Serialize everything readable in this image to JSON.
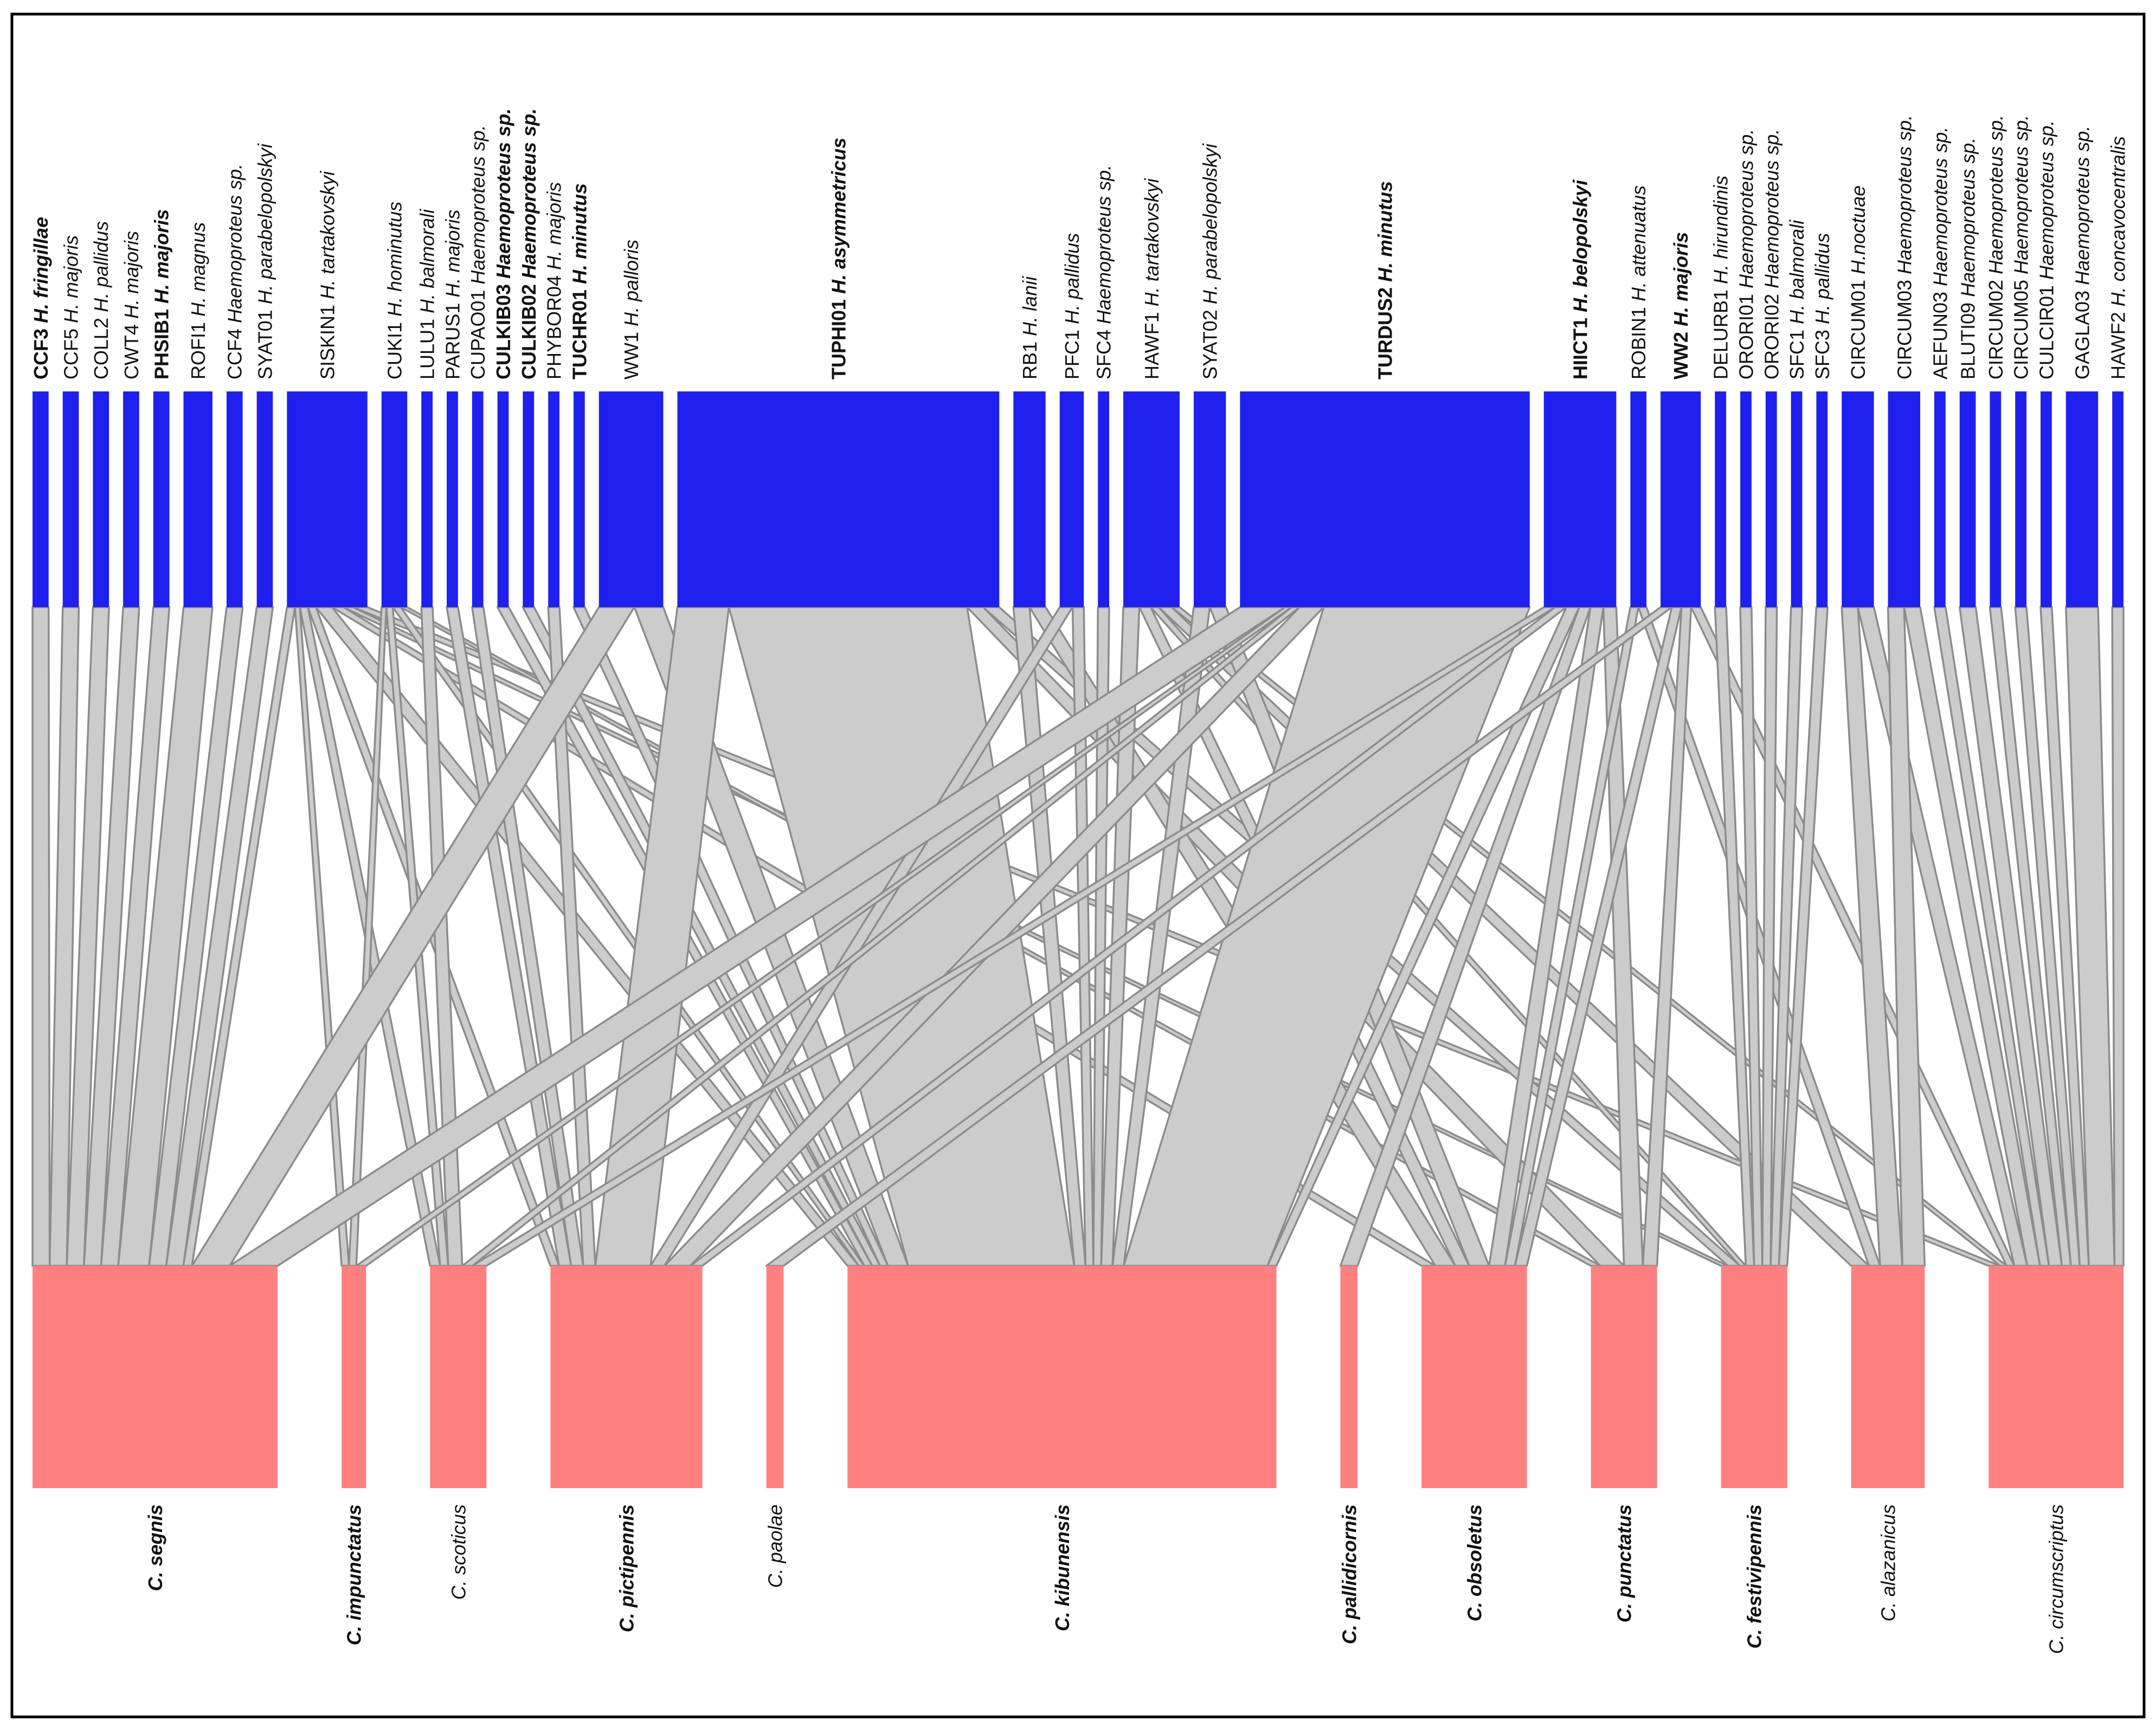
{
  "colors": {
    "parasite_bar": "#2020ee",
    "vector_bar": "#ff8080",
    "link_fill": "#cccccc",
    "link_stroke": "#8c8c8c",
    "frame": "#000000"
  },
  "parasites": [
    {
      "code": "CCF3",
      "species": "H. fringillae",
      "bold": true,
      "w": 1
    },
    {
      "code": "CCF5",
      "species": "H. majoris",
      "bold": false,
      "w": 1
    },
    {
      "code": "COLL2",
      "species": "H. pallidus",
      "bold": false,
      "w": 1
    },
    {
      "code": "CWT4",
      "species": "H. majoris",
      "bold": false,
      "w": 1
    },
    {
      "code": "PHSIB1",
      "species": "H. majoris",
      "bold": true,
      "w": 1
    },
    {
      "code": "ROFI1",
      "species": "H. magnus",
      "bold": false,
      "w": 1.8
    },
    {
      "code": "CCF4",
      "species": "Haemoproteus sp.",
      "bold": false,
      "w": 1
    },
    {
      "code": "SYAT01",
      "species": "H. parabelopolskyi",
      "bold": false,
      "w": 1
    },
    {
      "code": "SISKIN1",
      "species": "H. tartakovskyi",
      "bold": false,
      "w": 5
    },
    {
      "code": "CUKI1",
      "species": "H. hominutus",
      "bold": false,
      "w": 1.6
    },
    {
      "code": "LULU1",
      "species": "H. balmorali",
      "bold": false,
      "w": 0.7
    },
    {
      "code": "PARUS1",
      "species": "H. majoris",
      "bold": false,
      "w": 0.7
    },
    {
      "code": "CUPAO01",
      "species": "Haemoproteus sp.",
      "bold": false,
      "w": 0.7
    },
    {
      "code": "CULKIB03",
      "species": "Haemoproteus sp.",
      "bold": true,
      "w": 0.7
    },
    {
      "code": "CULKIB02",
      "species": "Haemoproteus sp.",
      "bold": true,
      "w": 0.7
    },
    {
      "code": "PHYBOR04",
      "species": "H. majoris",
      "bold": false,
      "w": 0.7
    },
    {
      "code": "TUCHR01",
      "species": "H. minutus",
      "bold": true,
      "w": 0.7
    },
    {
      "code": "WW1",
      "species": "H. palloris",
      "bold": false,
      "w": 4
    },
    {
      "code": "TUPHI01",
      "species": "H. asymmetricus",
      "bold": true,
      "w": 20
    },
    {
      "code": "RB1",
      "species": "H. lanii",
      "bold": false,
      "w": 2
    },
    {
      "code": "PFC1",
      "species": "H. pallidus",
      "bold": false,
      "w": 1.5
    },
    {
      "code": "SFC4",
      "species": "Haemoproteus sp.",
      "bold": false,
      "w": 0.7
    },
    {
      "code": "HAWF1",
      "species": "H. tartakovskyi",
      "bold": false,
      "w": 3.5
    },
    {
      "code": "SYAT02",
      "species": "H.  parabelopolskyi",
      "bold": false,
      "w": 2
    },
    {
      "code": "TURDUS2",
      "species": "H. minutus",
      "bold": true,
      "w": 18
    },
    {
      "code": "HIICT1",
      "species": "H. belopolskyi",
      "bold": true,
      "w": 4.5
    },
    {
      "code": "ROBIN1",
      "species": "H. attenuatus",
      "bold": false,
      "w": 1
    },
    {
      "code": "WW2",
      "species": "H. majoris",
      "bold": true,
      "w": 2.5
    },
    {
      "code": "DELURB1",
      "species": "H. hirundinis",
      "bold": false,
      "w": 0.7
    },
    {
      "code": "ORORI01",
      "species": "Haemoproteus sp.",
      "bold": false,
      "w": 0.7
    },
    {
      "code": "ORORI02",
      "species": "Haemoproteus sp.",
      "bold": false,
      "w": 0.7
    },
    {
      "code": "SFC1",
      "species": "H. balmorali",
      "bold": false,
      "w": 0.7
    },
    {
      "code": "SFC3",
      "species": "H. pallidus",
      "bold": false,
      "w": 0.7
    },
    {
      "code": "CIRCUM01",
      "species": "H.noctuae",
      "bold": false,
      "w": 2
    },
    {
      "code": "CIRCUM03",
      "species": "Haemoproteus sp.",
      "bold": false,
      "w": 2
    },
    {
      "code": "AEFUN03",
      "species": "Haemoproteus sp.",
      "bold": false,
      "w": 0.7
    },
    {
      "code": "BLUTI09",
      "species": "Haemoproteus sp.",
      "bold": false,
      "w": 1
    },
    {
      "code": "CIRCUM02",
      "species": "Haemoproteus sp.",
      "bold": false,
      "w": 0.7
    },
    {
      "code": "CIRCUM05",
      "species": "Haemoproteus sp.",
      "bold": false,
      "w": 0.7
    },
    {
      "code": "CULCIR01",
      "species": "Haemoproteus sp.",
      "bold": false,
      "w": 0.7
    },
    {
      "code": "GAGLA03",
      "species": "Haemoproteus sp.",
      "bold": false,
      "w": 2
    },
    {
      "code": "HAWF2",
      "species": "H. concavocentralis",
      "bold": false,
      "w": 0.7
    }
  ],
  "vectors": [
    {
      "name": "C. segnis",
      "bold": true,
      "w": 10
    },
    {
      "name": "C. impunctatus",
      "bold": true,
      "w": 1
    },
    {
      "name": "C. scoticus",
      "bold": false,
      "w": 2.3
    },
    {
      "name": "C. pictipennis",
      "bold": true,
      "w": 6.2
    },
    {
      "name": "C. paolae",
      "bold": false,
      "w": 0.7
    },
    {
      "name": "C. kibunensis",
      "bold": true,
      "w": 17.5
    },
    {
      "name": "C. pallidicornis",
      "bold": true,
      "w": 0.7
    },
    {
      "name": "C. obsoletus",
      "bold": true,
      "w": 4.3
    },
    {
      "name": "C. punctatus",
      "bold": true,
      "w": 2.7
    },
    {
      "name": "C. festivipennis",
      "bold": true,
      "w": 2.7
    },
    {
      "name": "C. alazanicus",
      "bold": false,
      "w": 3
    },
    {
      "name": "C. circumscriptus",
      "bold": false,
      "w": 5.5
    }
  ],
  "links": [
    [
      0,
      0,
      1
    ],
    [
      1,
      0,
      1
    ],
    [
      2,
      0,
      1
    ],
    [
      3,
      0,
      1
    ],
    [
      4,
      0,
      1
    ],
    [
      5,
      0,
      1.8
    ],
    [
      6,
      0,
      1
    ],
    [
      7,
      0,
      1
    ],
    [
      8,
      0,
      0.5
    ],
    [
      8,
      1,
      0.3
    ],
    [
      8,
      2,
      0.5
    ],
    [
      8,
      3,
      0.5
    ],
    [
      8,
      5,
      1
    ],
    [
      8,
      7,
      0.7
    ],
    [
      8,
      9,
      0.6
    ],
    [
      8,
      11,
      0.9
    ],
    [
      9,
      1,
      0.3
    ],
    [
      9,
      2,
      0.4
    ],
    [
      9,
      5,
      0.5
    ],
    [
      9,
      8,
      0.4
    ],
    [
      10,
      2,
      0.7
    ],
    [
      11,
      3,
      0.7
    ],
    [
      12,
      3,
      0.7
    ],
    [
      13,
      5,
      0.7
    ],
    [
      14,
      5,
      0.7
    ],
    [
      15,
      3,
      0.7
    ],
    [
      16,
      5,
      0.7
    ],
    [
      17,
      0,
      2.2
    ],
    [
      17,
      5,
      1.8
    ],
    [
      18,
      3,
      3.2
    ],
    [
      18,
      5,
      14.8
    ],
    [
      18,
      8,
      1
    ],
    [
      18,
      9,
      1
    ],
    [
      19,
      5,
      1
    ],
    [
      19,
      7,
      1
    ],
    [
      20,
      5,
      0.7
    ],
    [
      20,
      3,
      0.8
    ],
    [
      21,
      5,
      0.7
    ],
    [
      22,
      5,
      1
    ],
    [
      22,
      7,
      0.7
    ],
    [
      22,
      9,
      0.5
    ],
    [
      22,
      10,
      0.8
    ],
    [
      22,
      11,
      0.5
    ],
    [
      23,
      5,
      1
    ],
    [
      23,
      7,
      1
    ],
    [
      24,
      0,
      2.8
    ],
    [
      24,
      1,
      0.4
    ],
    [
      24,
      2,
      0.5
    ],
    [
      24,
      3,
      1.5
    ],
    [
      24,
      5,
      12.8
    ],
    [
      25,
      2,
      0.7
    ],
    [
      25,
      3,
      0.7
    ],
    [
      25,
      5,
      0.8
    ],
    [
      25,
      6,
      0.7
    ],
    [
      25,
      7,
      0.8
    ],
    [
      25,
      8,
      0.8
    ],
    [
      26,
      7,
      0.5
    ],
    [
      26,
      10,
      0.5
    ],
    [
      27,
      4,
      0.7
    ],
    [
      27,
      7,
      0.6
    ],
    [
      27,
      8,
      0.6
    ],
    [
      27,
      11,
      0.6
    ],
    [
      28,
      9,
      0.7
    ],
    [
      29,
      9,
      0.7
    ],
    [
      30,
      9,
      0.7
    ],
    [
      31,
      9,
      0.7
    ],
    [
      32,
      9,
      0.7
    ],
    [
      33,
      10,
      1
    ],
    [
      33,
      11,
      1
    ],
    [
      34,
      10,
      1
    ],
    [
      34,
      11,
      1
    ],
    [
      35,
      11,
      0.7
    ],
    [
      36,
      11,
      1
    ],
    [
      37,
      11,
      0.7
    ],
    [
      38,
      11,
      0.7
    ],
    [
      39,
      11,
      0.7
    ],
    [
      40,
      11,
      2
    ],
    [
      41,
      11,
      0.7
    ]
  ]
}
